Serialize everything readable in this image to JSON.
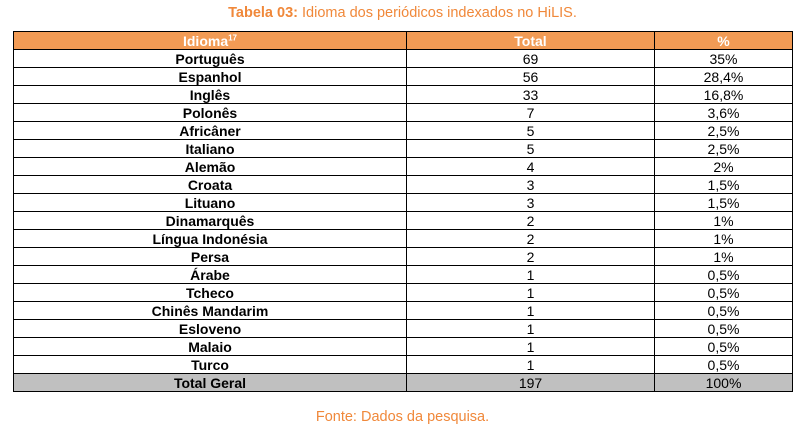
{
  "caption": {
    "label": "Tabela 03:",
    "text": "Idioma dos periódicos indexados no HiLIS."
  },
  "table": {
    "headers": {
      "language": "Idioma",
      "language_note": "17",
      "total": "Total",
      "percent": "%"
    },
    "rows": [
      {
        "language": "Português",
        "total": "69",
        "percent": "35%"
      },
      {
        "language": "Espanhol",
        "total": "56",
        "percent": "28,4%"
      },
      {
        "language": "Inglês",
        "total": "33",
        "percent": "16,8%"
      },
      {
        "language": "Polonês",
        "total": "7",
        "percent": "3,6%"
      },
      {
        "language": "Africâner",
        "total": "5",
        "percent": "2,5%"
      },
      {
        "language": "Italiano",
        "total": "5",
        "percent": "2,5%"
      },
      {
        "language": "Alemão",
        "total": "4",
        "percent": "2%"
      },
      {
        "language": "Croata",
        "total": "3",
        "percent": "1,5%"
      },
      {
        "language": "Lituano",
        "total": "3",
        "percent": "1,5%"
      },
      {
        "language": "Dinamarquês",
        "total": "2",
        "percent": "1%"
      },
      {
        "language": "Língua Indonésia",
        "total": "2",
        "percent": "1%"
      },
      {
        "language": "Persa",
        "total": "2",
        "percent": "1%"
      },
      {
        "language": "Árabe",
        "total": "1",
        "percent": "0,5%"
      },
      {
        "language": "Tcheco",
        "total": "1",
        "percent": "0,5%"
      },
      {
        "language": "Chinês Mandarim",
        "total": "1",
        "percent": "0,5%"
      },
      {
        "language": "Esloveno",
        "total": "1",
        "percent": "0,5%"
      },
      {
        "language": "Malaio",
        "total": "1",
        "percent": "0,5%"
      },
      {
        "language": "Turco",
        "total": "1",
        "percent": "0,5%"
      }
    ],
    "footer": {
      "language": "Total Geral",
      "total": "197",
      "percent": "100%"
    }
  },
  "source": "Fonte: Dados da pesquisa.",
  "colors": {
    "header_background": "#f29b55",
    "caption_text": "#f0883a",
    "total_row_background": "#c0c0c0"
  }
}
